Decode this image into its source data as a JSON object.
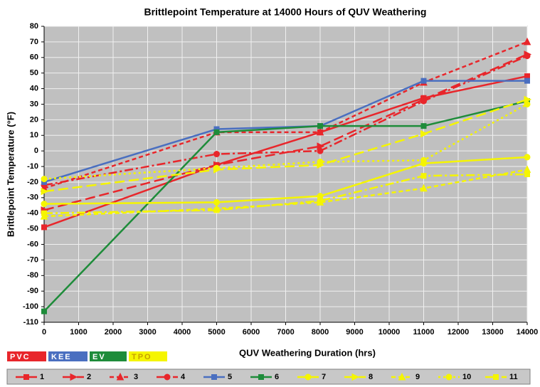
{
  "chart_data": {
    "type": "line",
    "title": "Brittlepoint Temperature at 14000 Hours of QUV Weathering",
    "x_label": "QUV Weathering Duration (hrs)",
    "y_label": "Brittlepoint Temperature (°F)",
    "x": [
      0,
      5000,
      8000,
      11000,
      14000
    ],
    "xlim": [
      0,
      14000
    ],
    "xticks": [
      0,
      1000,
      2000,
      3000,
      4000,
      5000,
      6000,
      7000,
      8000,
      9000,
      10000,
      11000,
      12000,
      13000,
      14000
    ],
    "ylim": [
      -110,
      80
    ],
    "yticks": [
      -110,
      -100,
      -90,
      -80,
      -70,
      -60,
      -50,
      -40,
      -30,
      -20,
      -10,
      0,
      10,
      20,
      30,
      40,
      50,
      60,
      70,
      80
    ],
    "grid": true,
    "groups": [
      {
        "name": "PVC",
        "color": "#e8262b"
      },
      {
        "name": "KEE",
        "color": "#4a6fc0"
      },
      {
        "name": "EV",
        "color": "#1e8c3a"
      },
      {
        "name": "TPO",
        "color": "#f5f500"
      }
    ],
    "series": [
      {
        "name": "1",
        "color": "#e8262b",
        "dash": "solid",
        "marker": "square",
        "values": [
          -49,
          -9,
          12,
          34,
          48
        ]
      },
      {
        "name": "2",
        "color": "#e8262b",
        "dash": "long",
        "marker": "arrow",
        "values": [
          -38,
          -9,
          3,
          33,
          62
        ]
      },
      {
        "name": "3",
        "color": "#e8262b",
        "dash": "short",
        "marker": "triangle",
        "values": [
          -24,
          12,
          12,
          44,
          70
        ]
      },
      {
        "name": "4",
        "color": "#e8262b",
        "dash": "dashdot",
        "marker": "circle",
        "values": [
          -22,
          -2,
          0,
          32,
          61
        ]
      },
      {
        "name": "5",
        "color": "#4a6fc0",
        "dash": "solid",
        "marker": "square",
        "values": [
          -20,
          14,
          16,
          45,
          45
        ]
      },
      {
        "name": "6",
        "color": "#1e8c3a",
        "dash": "solid",
        "marker": "square",
        "values": [
          -103,
          12,
          16,
          16,
          32
        ]
      },
      {
        "name": "7",
        "color": "#f5f500",
        "dash": "solid",
        "marker": "circle",
        "values": [
          -34,
          -33,
          -29,
          -8,
          -4
        ]
      },
      {
        "name": "8",
        "color": "#f5f500",
        "dash": "long",
        "marker": "arrow",
        "values": [
          -26,
          -12,
          -9,
          11,
          33
        ]
      },
      {
        "name": "9",
        "color": "#f5f500",
        "dash": "short",
        "marker": "triangle",
        "values": [
          -42,
          -37,
          -33,
          -24,
          -12
        ]
      },
      {
        "name": "10",
        "color": "#f5f500",
        "dash": "dot",
        "marker": "circle",
        "values": [
          -18,
          -11,
          -7,
          -6,
          30
        ]
      },
      {
        "name": "11",
        "color": "#f5f500",
        "dash": "dashdot",
        "marker": "square",
        "values": [
          -40,
          -38,
          -32,
          -16,
          -15
        ]
      }
    ]
  }
}
